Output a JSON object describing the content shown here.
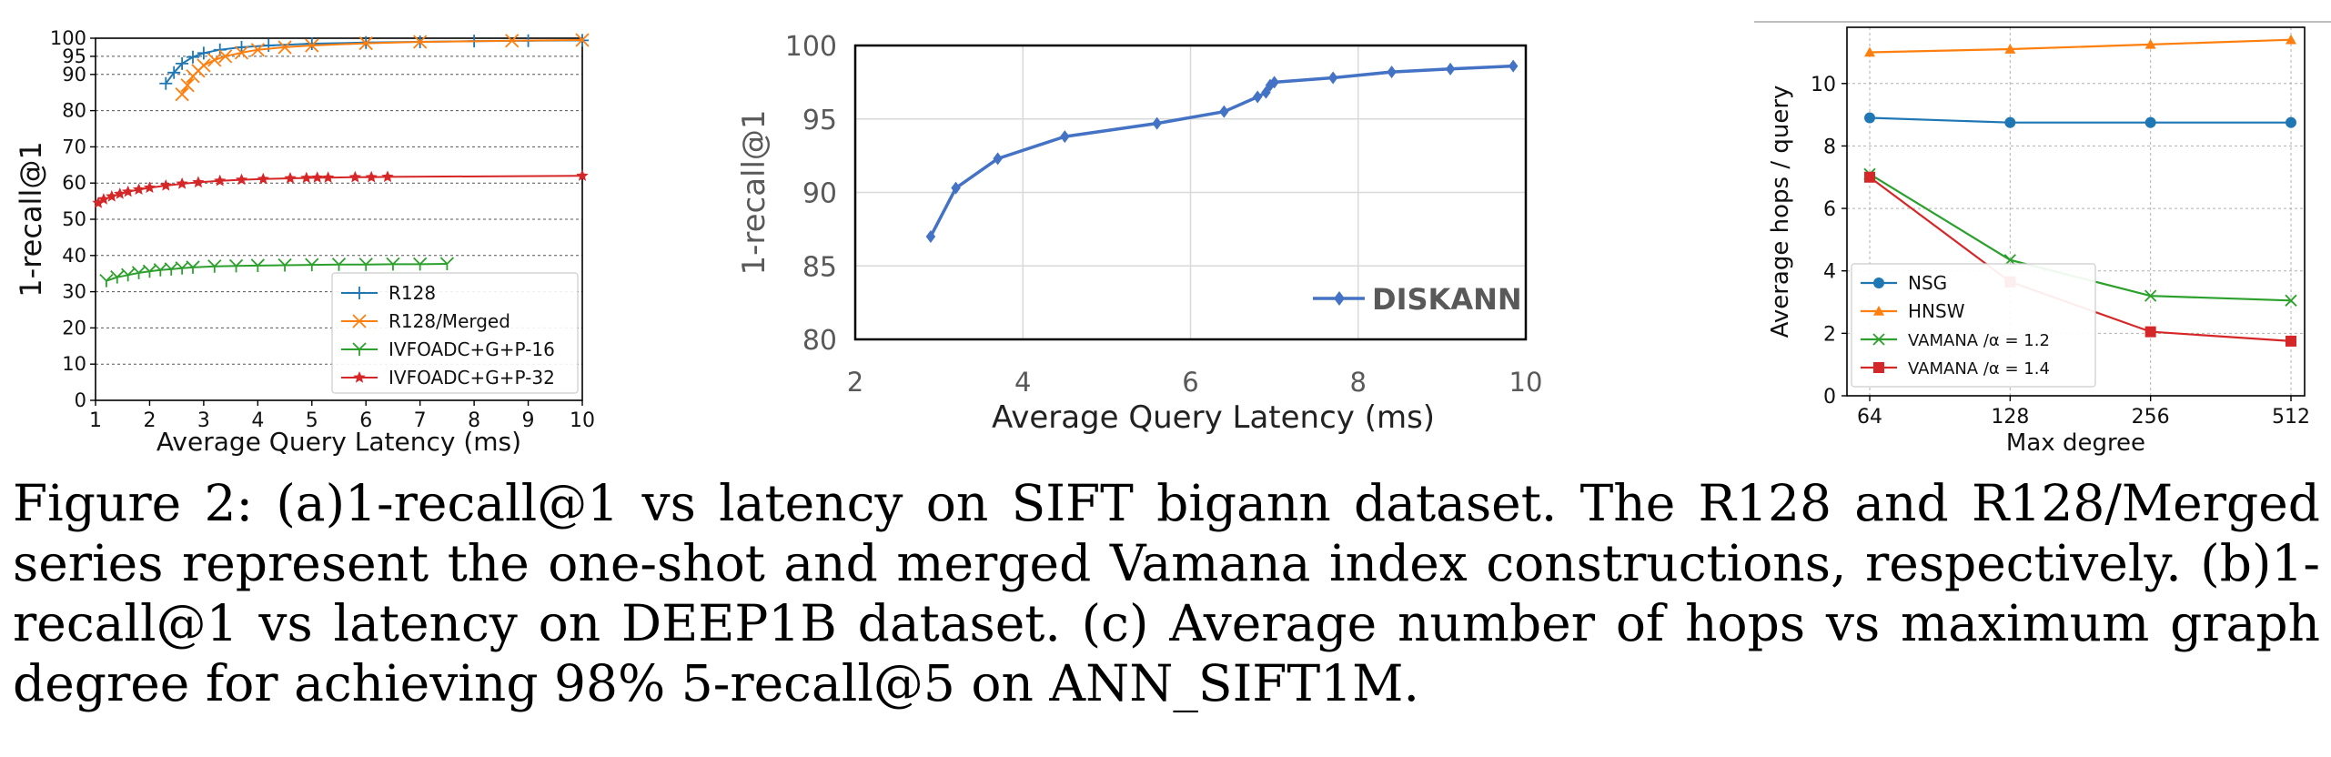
{
  "caption": {
    "text": "Figure 2: (a)1-recall@1 vs latency on SIFT bigann dataset. The R128 and R128/Merged series represent the one-shot and merged Vamana index constructions, respectively. (b)1-recall@1 vs latency on DEEP1B dataset. (c) Average number of hops vs maximum graph degree for achieving 98% 5-recall@5 on ANN_SIFT1M."
  },
  "chart_data": [
    {
      "id": "a",
      "type": "line",
      "title": "",
      "xlabel": "Average Query Latency (ms)",
      "ylabel": "1-recall@1",
      "xlim": [
        1,
        10
      ],
      "ylim": [
        0,
        100
      ],
      "xticks": [
        "1",
        "2",
        "3",
        "4",
        "5",
        "6",
        "7",
        "8",
        "9",
        "10"
      ],
      "yticks": [
        "0",
        "10",
        "20",
        "30",
        "40",
        "50",
        "60",
        "70",
        "80",
        "90",
        "95",
        "100"
      ],
      "grid": true,
      "legend_position": "lower-right",
      "colors": [
        "#1f77b4",
        "#ff7f0e",
        "#2ca02c",
        "#d62728"
      ],
      "series": [
        {
          "name": "R128",
          "marker": "+",
          "x": [
            2.3,
            2.45,
            2.6,
            2.8,
            3.0,
            3.3,
            3.7,
            4.2,
            5.0,
            6.0,
            7.0,
            8.0,
            9.0,
            10.0
          ],
          "y": [
            87.5,
            90.5,
            93.0,
            94.8,
            95.9,
            96.8,
            97.5,
            98.0,
            98.5,
            98.8,
            99.0,
            99.2,
            99.3,
            99.4
          ]
        },
        {
          "name": "R128/Merged",
          "marker": "x",
          "x": [
            2.6,
            2.7,
            2.8,
            2.9,
            3.0,
            3.2,
            3.4,
            3.7,
            4.0,
            4.5,
            5.0,
            6.0,
            7.0,
            8.7,
            10.0
          ],
          "y": [
            84.5,
            87.0,
            89.5,
            91.0,
            92.5,
            94.0,
            95.0,
            96.0,
            96.8,
            97.5,
            98.0,
            98.6,
            99.0,
            99.3,
            99.5
          ]
        },
        {
          "name": "IVFOADC+G+P-16",
          "marker": "tri_down",
          "x": [
            1.2,
            1.4,
            1.6,
            1.8,
            2.0,
            2.2,
            2.4,
            2.6,
            2.8,
            3.2,
            3.6,
            4.0,
            4.5,
            5.0,
            5.5,
            6.0,
            6.5,
            7.0,
            7.5
          ],
          "y": [
            33.0,
            34.0,
            34.6,
            35.2,
            35.6,
            36.0,
            36.2,
            36.5,
            36.7,
            37.0,
            37.1,
            37.2,
            37.3,
            37.4,
            37.5,
            37.5,
            37.6,
            37.6,
            37.7
          ]
        },
        {
          "name": "IVFOADC+G+P-32",
          "marker": "*",
          "x": [
            1.05,
            1.15,
            1.3,
            1.45,
            1.6,
            1.8,
            2.0,
            2.3,
            2.6,
            2.9,
            3.3,
            3.7,
            4.1,
            4.6,
            4.9,
            5.1,
            5.3,
            5.8,
            6.1,
            6.4,
            10.0
          ],
          "y": [
            54.5,
            55.5,
            56.3,
            57.0,
            57.6,
            58.2,
            58.7,
            59.3,
            59.8,
            60.2,
            60.6,
            60.9,
            61.1,
            61.3,
            61.4,
            61.5,
            61.5,
            61.6,
            61.6,
            61.7,
            62.0
          ]
        }
      ]
    },
    {
      "id": "b",
      "type": "line",
      "title": "",
      "xlabel": "Average Query Latency (ms)",
      "ylabel": "1-recall@1",
      "xlim": [
        2,
        10
      ],
      "ylim": [
        80,
        100
      ],
      "xticks": [
        "2",
        "4",
        "6",
        "8",
        "10"
      ],
      "yticks": [
        "80",
        "85",
        "90",
        "95",
        "100"
      ],
      "grid": true,
      "legend_position": "lower-right",
      "colors": [
        "#4472c4"
      ],
      "series": [
        {
          "name": "DISKANN",
          "marker": "diamond",
          "x": [
            2.9,
            3.2,
            3.7,
            4.5,
            5.6,
            6.4,
            6.8,
            6.9,
            6.95,
            7.0,
            7.7,
            8.4,
            9.1,
            9.85
          ],
          "y": [
            87.0,
            90.3,
            92.3,
            93.8,
            94.7,
            95.5,
            96.5,
            96.8,
            97.3,
            97.5,
            97.8,
            98.2,
            98.4,
            98.6
          ]
        }
      ]
    },
    {
      "id": "c",
      "type": "line",
      "title": "",
      "xlabel": "Max degree",
      "ylabel": "Average hops / query",
      "xscale": "log2",
      "xlim": [
        64,
        512
      ],
      "ylim": [
        0,
        11.8
      ],
      "xticks": [
        "64",
        "128",
        "256",
        "512"
      ],
      "yticks": [
        "0",
        "2",
        "4",
        "6",
        "8",
        "10"
      ],
      "grid": true,
      "legend_position": "lower-left",
      "colors": [
        "#1f77b4",
        "#ff7f0e",
        "#2ca02c",
        "#d62728"
      ],
      "series": [
        {
          "name": "NSG",
          "marker": "o",
          "x": [
            64,
            128,
            256,
            512
          ],
          "y": [
            8.9,
            8.75,
            8.75,
            8.75
          ]
        },
        {
          "name": "HNSW",
          "marker": "^",
          "x": [
            64,
            128,
            256,
            512
          ],
          "y": [
            11.0,
            11.1,
            11.25,
            11.4
          ]
        },
        {
          "name": "VAMANA /α = 1.2",
          "marker": "x",
          "x": [
            64,
            128,
            256,
            512
          ],
          "y": [
            7.1,
            4.35,
            3.2,
            3.05
          ]
        },
        {
          "name": "VAMANA /α = 1.4",
          "marker": "s",
          "x": [
            64,
            128,
            256,
            512
          ],
          "y": [
            7.0,
            3.65,
            2.05,
            1.75
          ]
        }
      ]
    }
  ]
}
